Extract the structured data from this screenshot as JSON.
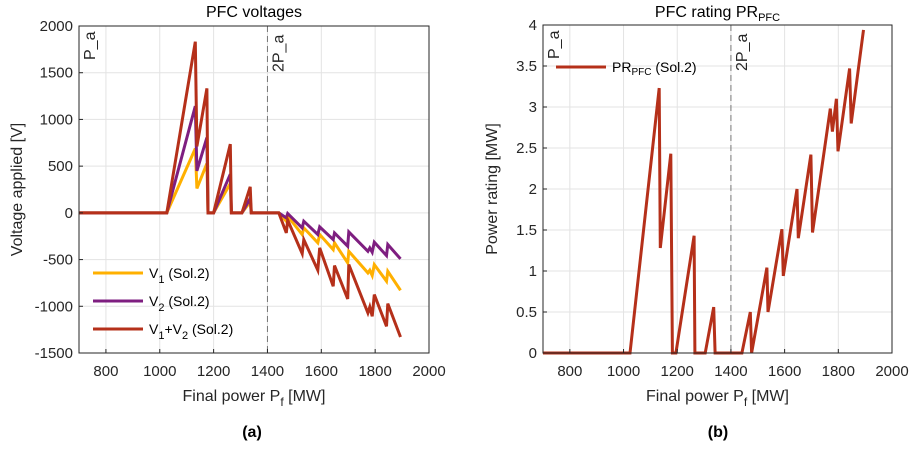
{
  "chart_data": [
    {
      "type": "line",
      "title": "PFC voltages",
      "xlabel": "Final power P_f [MW]",
      "xlabel_main": "Final power P",
      "xlabel_sub": "f",
      "xlabel_unit": "[MW]",
      "ylabel": "Voltage applied [V]",
      "caption": "(a)",
      "xlim": [
        700,
        2000
      ],
      "ylim": [
        -1500,
        2000
      ],
      "xticks": [
        800,
        1000,
        1200,
        1400,
        1600,
        1800,
        2000
      ],
      "yticks": [
        -1500,
        -1000,
        -500,
        0,
        500,
        1000,
        1500,
        2000
      ],
      "grid": true,
      "legend_position": "bottom-left",
      "annotations": [
        {
          "text": "P_a",
          "main": "P",
          "sub": "a",
          "x": 700
        },
        {
          "text": "2P_a",
          "main": "2P",
          "sub": "a",
          "x": 1400
        }
      ],
      "series": [
        {
          "name": "V1 (Sol.2)",
          "label_main": "V",
          "label_sub": "1",
          "label_rest": " (Sol.2)",
          "color": "#FFB000",
          "x": [
            700,
            1026,
            1132,
            1138,
            1175,
            1179,
            1200,
            1262,
            1266,
            1305,
            1336,
            1340,
            1442,
            1470,
            1475,
            1529,
            1535,
            1587,
            1594,
            1644,
            1649,
            1698,
            1702,
            1773,
            1780,
            1789,
            1797,
            1842,
            1847,
            1894
          ],
          "y": [
            0,
            0,
            689,
            261,
            529,
            0,
            0,
            314,
            0,
            0,
            118,
            0,
            0,
            -89,
            -36,
            -232,
            -161,
            -321,
            -232,
            -393,
            -321,
            -536,
            -411,
            -643,
            -614,
            -671,
            -554,
            -732,
            -625,
            -829
          ]
        },
        {
          "name": "V2 (Sol.2)",
          "label_main": "V",
          "label_sub": "2",
          "label_rest": " (Sol.2)",
          "color": "#7E1E80",
          "x": [
            700,
            1026,
            1132,
            1138,
            1175,
            1179,
            1200,
            1262,
            1266,
            1305,
            1336,
            1340,
            1442,
            1470,
            1475,
            1529,
            1535,
            1587,
            1594,
            1644,
            1649,
            1698,
            1702,
            1773,
            1780,
            1789,
            1797,
            1842,
            1847,
            1894
          ],
          "y": [
            0,
            0,
            1143,
            450,
            807,
            0,
            0,
            414,
            0,
            0,
            154,
            0,
            0,
            -54,
            -7,
            -161,
            -89,
            -232,
            -150,
            -286,
            -214,
            -357,
            -204,
            -411,
            -375,
            -421,
            -314,
            -457,
            -339,
            -493
          ]
        },
        {
          "name": "V1+V2 (Sol.2)",
          "label_main": "V",
          "label_sub": "1",
          "label_mid": "+V",
          "label_sub2": "2",
          "label_rest": " (Sol.2)",
          "color": "#B5301A",
          "x": [
            700,
            1026,
            1132,
            1138,
            1175,
            1179,
            1200,
            1262,
            1266,
            1305,
            1336,
            1340,
            1442,
            1470,
            1475,
            1529,
            1535,
            1587,
            1594,
            1644,
            1649,
            1698,
            1702,
            1773,
            1780,
            1789,
            1797,
            1842,
            1847,
            1894
          ],
          "y": [
            0,
            0,
            1832,
            711,
            1332,
            0,
            0,
            736,
            0,
            0,
            279,
            0,
            0,
            -214,
            -79,
            -436,
            -286,
            -614,
            -375,
            -786,
            -564,
            -921,
            -554,
            -1071,
            -1007,
            -1107,
            -875,
            -1214,
            -971,
            -1329
          ]
        }
      ]
    },
    {
      "type": "line",
      "title": "PFC rating PR_PFC",
      "title_main": "PFC rating PR",
      "title_sub": "PFC",
      "xlabel": "Final power P_f [MW]",
      "xlabel_main": "Final power P",
      "xlabel_sub": "f",
      "xlabel_unit": "[MW]",
      "ylabel": "Power rating [MW]",
      "caption": "(b)",
      "xlim": [
        700,
        2000
      ],
      "ylim": [
        0,
        4
      ],
      "xticks": [
        800,
        1000,
        1200,
        1400,
        1600,
        1800,
        2000
      ],
      "yticks": [
        0,
        0.5,
        1,
        1.5,
        2,
        2.5,
        3,
        3.5,
        4
      ],
      "grid": true,
      "legend_position": "top-left",
      "annotations": [
        {
          "text": "P_a",
          "main": "P",
          "sub": "a",
          "x": 700
        },
        {
          "text": "2P_a",
          "main": "2P",
          "sub": "a",
          "x": 1400
        }
      ],
      "series": [
        {
          "name": "PR_PFC (Sol.2)",
          "label_main": "PR",
          "label_sub": "PFC",
          "label_rest": " (Sol.2)",
          "color": "#B5301A",
          "x": [
            700,
            1024,
            1133,
            1137,
            1176,
            1182,
            1195,
            1263,
            1266,
            1304,
            1336,
            1341,
            1441,
            1472,
            1477,
            1534,
            1538,
            1590,
            1595,
            1646,
            1651,
            1698,
            1704,
            1770,
            1778,
            1793,
            1799,
            1842,
            1848,
            1894
          ],
          "y": [
            0,
            0,
            3.23,
            1.28,
            2.43,
            0,
            0,
            1.43,
            0,
            0,
            0.56,
            0,
            0,
            0.5,
            0,
            1.04,
            0.5,
            1.51,
            0.94,
            2.0,
            1.4,
            2.42,
            1.47,
            2.98,
            2.7,
            3.1,
            2.46,
            3.47,
            2.8,
            3.94
          ]
        }
      ]
    }
  ]
}
